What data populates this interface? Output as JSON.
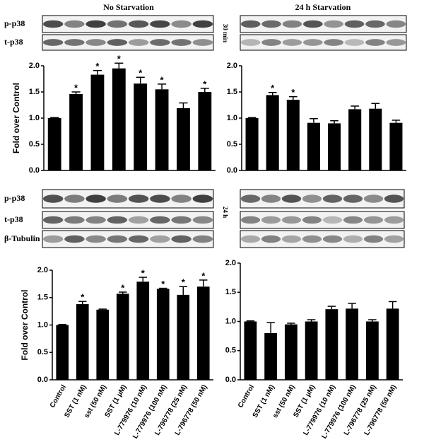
{
  "headers": [
    "No Starvation",
    "24 h Starvation"
  ],
  "blots": [
    {
      "rows": [
        "p-p38",
        "t-p38"
      ],
      "time": "30 min"
    },
    {
      "rows": [
        "p-p38",
        "t-p38",
        "β-Tubulin"
      ],
      "time": "24 h"
    }
  ],
  "chart_data": [
    {
      "type": "bar",
      "ylabel": "Fold over Control",
      "color": "#000000",
      "values": [
        1.0,
        1.46,
        1.83,
        1.95,
        1.66,
        1.55,
        1.19,
        1.5
      ],
      "errors": [
        0.01,
        0.04,
        0.08,
        0.1,
        0.12,
        0.1,
        0.1,
        0.07
      ],
      "annotations": [
        null,
        "*",
        "*",
        "*",
        "*",
        "*",
        null,
        "*"
      ],
      "ylim": [
        0,
        2.0
      ],
      "yticks": [
        {
          "value": 0,
          "label": "0.0"
        },
        {
          "value": 0.5,
          "label": "0.5"
        },
        {
          "value": 1.0,
          "label": "1.0"
        },
        {
          "value": 1.5,
          "label": "1.5"
        },
        {
          "value": 2.0,
          "label": "2.0"
        }
      ]
    },
    {
      "type": "bar",
      "color": "#000000",
      "values": [
        1.0,
        1.44,
        1.35,
        0.91,
        0.9,
        1.17,
        1.18,
        0.91
      ],
      "errors": [
        0.01,
        0.05,
        0.06,
        0.08,
        0.05,
        0.06,
        0.1,
        0.05
      ],
      "annotations": [
        null,
        "*",
        "*",
        null,
        null,
        null,
        null,
        null
      ],
      "ylim": [
        0,
        2.0
      ],
      "yticks": [
        {
          "value": 0,
          "label": "0.0"
        },
        {
          "value": 0.5,
          "label": "0.5"
        },
        {
          "value": 1.0,
          "label": "1.0"
        },
        {
          "value": 1.5,
          "label": "1.5"
        },
        {
          "value": 2.0,
          "label": "2.0"
        }
      ]
    },
    {
      "type": "bar",
      "ylabel": "Fold over Control",
      "color": "#000000",
      "categories": [
        "Control",
        "SST (1 nM)",
        "sst (50 nM)",
        "SST (1 µM)",
        "L-779976 (10 nM)",
        "L-779976 (100 nM)",
        "L-796778 (25 nM)",
        "L-796778 (50 nM)"
      ],
      "values": [
        1.0,
        1.38,
        1.28,
        1.57,
        1.79,
        1.66,
        1.55,
        1.7
      ],
      "errors": [
        0.01,
        0.05,
        0.01,
        0.03,
        0.08,
        0.01,
        0.15,
        0.12
      ],
      "annotations": [
        null,
        "*",
        null,
        "*",
        "*",
        "*",
        "*",
        "*"
      ],
      "ylim": [
        0,
        2.0
      ],
      "yticks": [
        {
          "value": 0,
          "label": "0.0"
        },
        {
          "value": 0.5,
          "label": "0.5"
        },
        {
          "value": 1.0,
          "label": "1.0"
        },
        {
          "value": 1.5,
          "label": "1.5"
        },
        {
          "value": 2.0,
          "label": "2.0"
        }
      ]
    },
    {
      "type": "bar",
      "color": "#000000",
      "categories": [
        "Control",
        "SST (1 nM)",
        "sst (50 nM)",
        "SST (1 µM)",
        "L-779976 (10 nM)",
        "L-779976 (100 nM)",
        "L-796778 (25 nM)",
        "L-796778 (50 nM)"
      ],
      "values": [
        1.0,
        0.8,
        0.95,
        1.0,
        1.21,
        1.22,
        1.0,
        1.22
      ],
      "errors": [
        0.01,
        0.18,
        0.02,
        0.03,
        0.05,
        0.09,
        0.03,
        0.12
      ],
      "ylim": [
        0,
        2.0
      ],
      "yticks": [
        {
          "value": 0,
          "label": "0.0"
        },
        {
          "value": 0.5,
          "label": "0.5"
        },
        {
          "value": 1.0,
          "label": "1.0"
        },
        {
          "value": 1.5,
          "label": "1.5"
        },
        {
          "value": 2.0,
          "label": "2.0"
        }
      ]
    }
  ]
}
